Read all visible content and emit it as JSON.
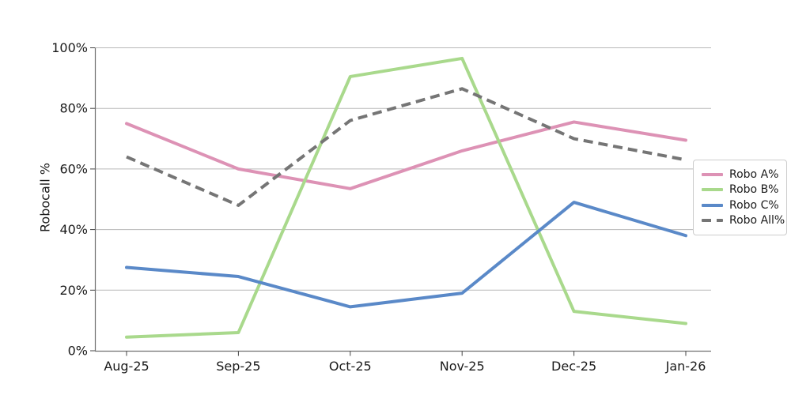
{
  "chart_data": {
    "type": "line",
    "title": "",
    "xlabel": "",
    "ylabel": "Robocall %",
    "categories": [
      "Aug-25",
      "Sep-25",
      "Oct-25",
      "Nov-25",
      "Dec-25",
      "Jan-26"
    ],
    "ylim": [
      0,
      100
    ],
    "yticks": [
      "0%",
      "20%",
      "40%",
      "60%",
      "80%",
      "100%"
    ],
    "ytick_values": [
      0,
      20,
      40,
      60,
      80,
      100
    ],
    "grid": "horizontal",
    "grid_color": "#b9b9b9",
    "axis_color": "#707070",
    "text_color": "#1a1a1a",
    "legend_position": "center-right",
    "series": [
      {
        "name": "Robo A%",
        "color": "#dd92b5",
        "style": "solid",
        "values": [
          75,
          60,
          53.5,
          66,
          75.5,
          69.5
        ]
      },
      {
        "name": "Robo B%",
        "color": "#a9d98c",
        "style": "solid",
        "values": [
          4.5,
          6,
          90.5,
          96.5,
          13,
          9
        ]
      },
      {
        "name": "Robo C%",
        "color": "#5a89c8",
        "style": "solid",
        "values": [
          27.5,
          24.5,
          14.5,
          19,
          49,
          38
        ]
      },
      {
        "name": "Robo All%",
        "color": "#757575",
        "style": "dashed",
        "values": [
          64,
          48,
          76,
          86.5,
          70,
          63
        ]
      }
    ]
  }
}
